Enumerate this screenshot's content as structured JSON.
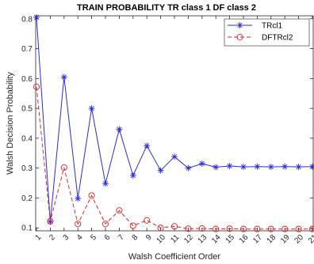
{
  "chart_data": {
    "type": "line",
    "title": "TRAIN PROBABILITY   TR class 1 DF  class 2",
    "xlabel": "Walsh Coefficient Order",
    "ylabel": "Walsh Decision Probability",
    "x": [
      1,
      2,
      3,
      4,
      5,
      6,
      7,
      8,
      9,
      10,
      11,
      12,
      13,
      14,
      15,
      16,
      17,
      18,
      19,
      20,
      21
    ],
    "xlim": [
      1,
      21
    ],
    "ylim": [
      0.09,
      0.81
    ],
    "yticks": [
      0.1,
      0.2,
      0.3,
      0.4,
      0.5,
      0.6,
      0.7,
      0.8
    ],
    "xticks": [
      "1",
      "2",
      "3",
      "4",
      "5",
      "6",
      "7",
      "8",
      "9",
      "10",
      "11",
      "12",
      "13",
      "14",
      "15",
      "16",
      "17",
      "18",
      "19",
      "20",
      "21"
    ],
    "ytick_labels": [
      "0.1",
      "0.2",
      "0.3",
      "0.4",
      "0.5",
      "0.6",
      "0.7",
      "0.8"
    ],
    "grid": false,
    "legend_position": "top-right",
    "series": [
      {
        "name": "TRcl1",
        "color": "#2b2bd6",
        "marker": "asterisk",
        "line_style": "solid",
        "values": [
          0.805,
          0.12,
          0.605,
          0.198,
          0.5,
          0.248,
          0.43,
          0.275,
          0.375,
          0.292,
          0.338,
          0.3,
          0.315,
          0.303,
          0.307,
          0.304,
          0.305,
          0.304,
          0.305,
          0.304,
          0.305
        ]
      },
      {
        "name": "DFTRcl2",
        "color": "#e0252b",
        "marker": "circle",
        "line_style": "dashed",
        "values": [
          0.572,
          0.122,
          0.302,
          0.113,
          0.208,
          0.113,
          0.158,
          0.107,
          0.125,
          0.1,
          0.105,
          0.097,
          0.098,
          0.096,
          0.097,
          0.096,
          0.096,
          0.096,
          0.096,
          0.096,
          0.096
        ]
      }
    ]
  }
}
